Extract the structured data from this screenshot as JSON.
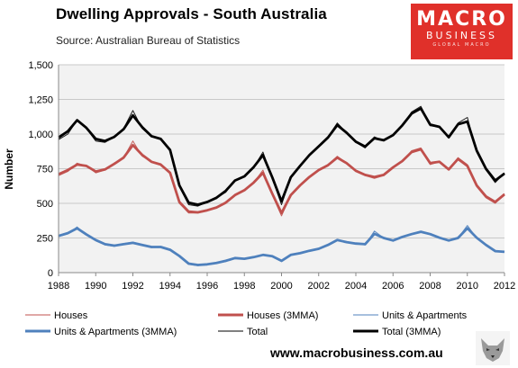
{
  "header": {
    "title": "Dwelling Approvals - South Australia",
    "source": "Source:  Australian Bureau of Statistics"
  },
  "logo": {
    "line1": "MACRO",
    "line2": "BUSINESS",
    "line3": "GLOBAL MACRO"
  },
  "footer": {
    "website": "www.macrobusiness.com.au"
  },
  "colors": {
    "houses": "#c0504d",
    "units": "#4f81bd",
    "total": "#000000",
    "plot_bg": "#f2f2f2",
    "logo_bg": "#e0302a"
  },
  "chart_data": {
    "type": "line",
    "title": "Dwelling Approvals - South Australia",
    "xlabel": "",
    "ylabel": "Number",
    "xlim": [
      1988,
      2012
    ],
    "ylim": [
      0,
      1500
    ],
    "xticks": [
      "1988",
      "1990",
      "1992",
      "1994",
      "1996",
      "1998",
      "2000",
      "2002",
      "2004",
      "2006",
      "2008",
      "2010",
      "2012"
    ],
    "yticks": [
      "0",
      "250",
      "500",
      "750",
      "1,000",
      "1,250",
      "1,500"
    ],
    "grid": "horizontal",
    "legend_position": "bottom",
    "x": [
      1988,
      1988.5,
      1989,
      1989.5,
      1990,
      1990.5,
      1991,
      1991.5,
      1992,
      1992.5,
      1993,
      1993.5,
      1994,
      1994.5,
      1995,
      1995.5,
      1996,
      1996.5,
      1997,
      1997.5,
      1998,
      1998.5,
      1999,
      1999.5,
      2000,
      2000.5,
      2001,
      2001.5,
      2002,
      2002.5,
      2003,
      2003.5,
      2004,
      2004.5,
      2005,
      2005.5,
      2006,
      2006.5,
      2007,
      2007.5,
      2008,
      2008.5,
      2009,
      2009.5,
      2010,
      2010.5,
      2011,
      2011.5,
      2012
    ],
    "series": [
      {
        "name": "Houses",
        "style": "thin",
        "color": "#c0504d",
        "values": [
          700,
          730,
          790,
          770,
          720,
          740,
          790,
          830,
          950,
          840,
          800,
          780,
          720,
          500,
          430,
          430,
          450,
          470,
          500,
          560,
          590,
          650,
          740,
          560,
          410,
          560,
          630,
          690,
          740,
          780,
          840,
          790,
          730,
          700,
          680,
          700,
          760,
          800,
          880,
          900,
          780,
          800,
          740,
          830,
          780,
          620,
          540,
          500,
          570
        ]
      },
      {
        "name": "Houses (3MMA)",
        "style": "thick",
        "color": "#c0504d",
        "values": [
          710,
          740,
          780,
          770,
          730,
          745,
          785,
          830,
          920,
          850,
          800,
          780,
          720,
          510,
          440,
          435,
          450,
          470,
          505,
          560,
          595,
          650,
          720,
          570,
          430,
          560,
          630,
          690,
          740,
          775,
          830,
          790,
          735,
          705,
          690,
          705,
          760,
          805,
          870,
          890,
          790,
          800,
          745,
          820,
          770,
          630,
          550,
          510,
          565
        ]
      },
      {
        "name": "Units & Apartments",
        "style": "thin",
        "color": "#4f81bd",
        "values": [
          260,
          280,
          330,
          270,
          230,
          200,
          190,
          210,
          220,
          200,
          180,
          190,
          170,
          120,
          60,
          50,
          60,
          70,
          80,
          110,
          100,
          110,
          130,
          120,
          80,
          130,
          140,
          160,
          170,
          200,
          240,
          220,
          210,
          200,
          300,
          250,
          230,
          260,
          280,
          300,
          280,
          250,
          230,
          250,
          340,
          250,
          200,
          150,
          150
        ]
      },
      {
        "name": "Units & Apartments (3MMA)",
        "style": "thick",
        "color": "#4f81bd",
        "values": [
          265,
          285,
          320,
          275,
          235,
          205,
          195,
          205,
          215,
          200,
          185,
          185,
          165,
          120,
          65,
          55,
          60,
          70,
          85,
          105,
          100,
          112,
          128,
          118,
          85,
          128,
          140,
          158,
          172,
          200,
          235,
          220,
          210,
          205,
          280,
          250,
          232,
          258,
          278,
          295,
          278,
          252,
          232,
          250,
          320,
          252,
          200,
          155,
          150
        ]
      },
      {
        "name": "Total",
        "style": "thin",
        "color": "#000000",
        "values": [
          960,
          1000,
          1100,
          1040,
          950,
          940,
          980,
          1040,
          1170,
          1040,
          980,
          970,
          890,
          620,
          490,
          480,
          510,
          540,
          580,
          670,
          690,
          760,
          870,
          680,
          490,
          690,
          770,
          850,
          910,
          980,
          1080,
          1010,
          940,
          900,
          980,
          950,
          990,
          1060,
          1160,
          1200,
          1060,
          1050,
          970,
          1080,
          1120,
          870,
          740,
          650,
          720
        ]
      },
      {
        "name": "Total (3MMA)",
        "style": "thick",
        "color": "#000000",
        "values": [
          975,
          1020,
          1100,
          1045,
          965,
          950,
          980,
          1035,
          1135,
          1050,
          985,
          965,
          885,
          630,
          505,
          490,
          510,
          540,
          590,
          665,
          695,
          762,
          848,
          688,
          515,
          688,
          770,
          848,
          912,
          975,
          1065,
          1010,
          945,
          910,
          970,
          955,
          992,
          1063,
          1148,
          1185,
          1068,
          1052,
          977,
          1070,
          1090,
          882,
          750,
          665,
          715
        ]
      }
    ]
  }
}
